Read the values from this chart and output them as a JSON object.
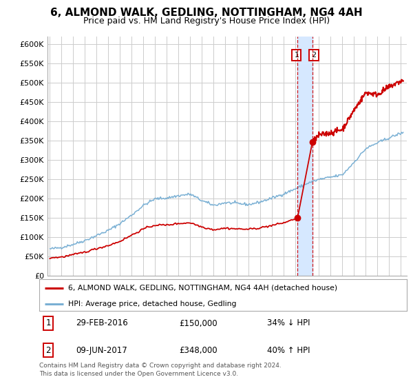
{
  "title": "6, ALMOND WALK, GEDLING, NOTTINGHAM, NG4 4AH",
  "subtitle": "Price paid vs. HM Land Registry's House Price Index (HPI)",
  "ylim": [
    0,
    620000
  ],
  "yticks": [
    0,
    50000,
    100000,
    150000,
    200000,
    250000,
    300000,
    350000,
    400000,
    450000,
    500000,
    550000,
    600000
  ],
  "ytick_labels": [
    "£0",
    "£50K",
    "£100K",
    "£150K",
    "£200K",
    "£250K",
    "£300K",
    "£350K",
    "£400K",
    "£450K",
    "£500K",
    "£550K",
    "£600K"
  ],
  "xlim_start": 1994.8,
  "xlim_end": 2025.5,
  "transaction1_year": 2016.16,
  "transaction1_price": 150000,
  "transaction2_year": 2017.44,
  "transaction2_price": 348000,
  "shade_color": "#d6e8ff",
  "line1_color": "#cc0000",
  "line2_color": "#7ab0d4",
  "legend_line1": "6, ALMOND WALK, GEDLING, NOTTINGHAM, NG4 4AH (detached house)",
  "legend_line2": "HPI: Average price, detached house, Gedling",
  "table_row1_num": "1",
  "table_row1_date": "29-FEB-2016",
  "table_row1_price": "£150,000",
  "table_row1_hpi": "34% ↓ HPI",
  "table_row2_num": "2",
  "table_row2_date": "09-JUN-2017",
  "table_row2_price": "£348,000",
  "table_row2_hpi": "40% ↑ HPI",
  "copyright": "Contains HM Land Registry data © Crown copyright and database right 2024.\nThis data is licensed under the Open Government Licence v3.0.",
  "bg": "#ffffff",
  "grid_color": "#cccccc",
  "hpi_knots_x": [
    1995,
    1996,
    1997,
    1998,
    1999,
    2000,
    2001,
    2002,
    2003,
    2004,
    2005,
    2006,
    2007,
    2008,
    2009,
    2010,
    2011,
    2012,
    2013,
    2014,
    2015,
    2016,
    2017,
    2018,
    2019,
    2020,
    2021,
    2022,
    2023,
    2024,
    2025
  ],
  "hpi_knots_y": [
    70000,
    74000,
    82000,
    92000,
    105000,
    118000,
    136000,
    158000,
    183000,
    200000,
    202000,
    208000,
    212000,
    195000,
    183000,
    190000,
    188000,
    185000,
    192000,
    202000,
    213000,
    226000,
    240000,
    250000,
    256000,
    262000,
    295000,
    330000,
    345000,
    358000,
    370000
  ],
  "red_pre_knots_x": [
    1995,
    1996,
    1997,
    1998,
    1999,
    2000,
    2001,
    2002,
    2003,
    2004,
    2005,
    2006,
    2007,
    2008,
    2009,
    2010,
    2011,
    2012,
    2013,
    2014,
    2015,
    2016.16
  ],
  "red_pre_knots_y": [
    47000,
    49000,
    55000,
    62000,
    71000,
    79000,
    90000,
    106000,
    122000,
    132000,
    132000,
    136000,
    138000,
    127000,
    120000,
    124000,
    122000,
    121000,
    125000,
    131000,
    138000,
    150000
  ],
  "red_post_knots_x": [
    2017.44,
    2018,
    2019,
    2020,
    2021,
    2022,
    2023,
    2024,
    2025
  ],
  "red_post_knots_y": [
    348000,
    365000,
    371000,
    380000,
    430000,
    475000,
    470000,
    490000,
    505000
  ]
}
